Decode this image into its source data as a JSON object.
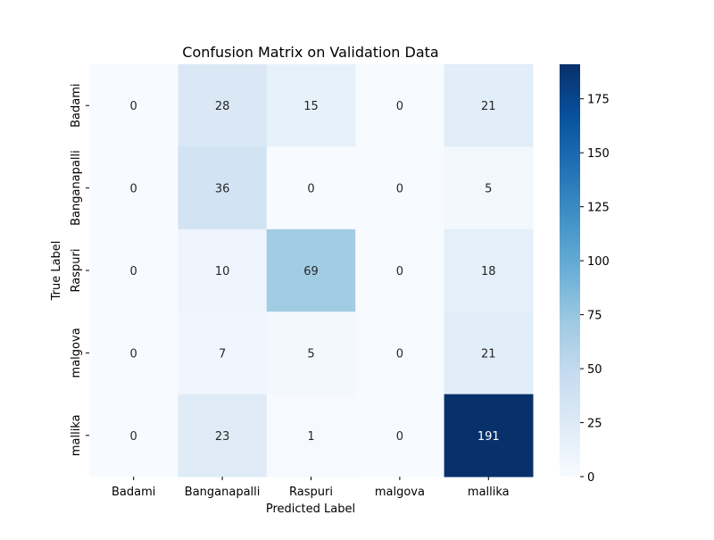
{
  "chart_data": {
    "type": "heatmap",
    "title": "Confusion Matrix on Validation Data",
    "xlabel": "Predicted Label",
    "ylabel": "True Label",
    "x_categories": [
      "Badami",
      "Banganapalli",
      "Raspuri",
      "malgova",
      "mallika"
    ],
    "y_categories": [
      "Badami",
      "Banganapalli",
      "Raspuri",
      "malgova",
      "mallika"
    ],
    "values": [
      [
        0,
        28,
        15,
        0,
        21
      ],
      [
        0,
        36,
        0,
        0,
        5
      ],
      [
        0,
        10,
        69,
        0,
        18
      ],
      [
        0,
        7,
        5,
        0,
        21
      ],
      [
        0,
        23,
        1,
        0,
        191
      ]
    ],
    "colormap": "Blues",
    "color_range": [
      0,
      191
    ],
    "colorbar_ticks": [
      0,
      25,
      50,
      75,
      100,
      125,
      150,
      175
    ],
    "annotations": true,
    "grid": false,
    "colorbar_position": "right"
  }
}
